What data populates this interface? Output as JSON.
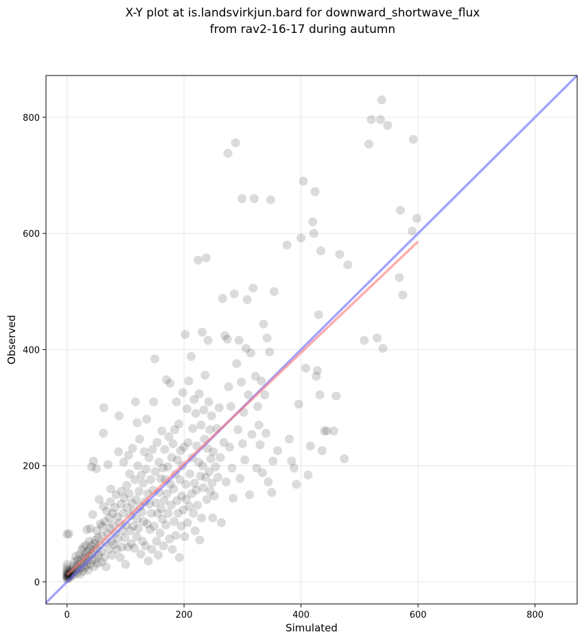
{
  "chart_data": {
    "type": "scatter",
    "title": [
      "X-Y plot at is.landsvirkjun.bard for downward_shortwave_flux",
      "from rav2-16-17 during autumn"
    ],
    "xlabel": "Simulated",
    "ylabel": "Observed",
    "xlim": [
      -36,
      872
    ],
    "ylim": [
      -38,
      872
    ],
    "xticks": [
      0,
      200,
      400,
      600,
      800
    ],
    "yticks": [
      0,
      200,
      400,
      600,
      800
    ],
    "grid": true,
    "point_color": "#000000",
    "point_opacity": 0.14,
    "identity_line": {
      "color": "#6666ff",
      "from": [
        -36,
        -36
      ],
      "to": [
        872,
        872
      ]
    },
    "fit_line": {
      "color": "#ff7777",
      "from": [
        0,
        12
      ],
      "to": [
        600,
        586
      ]
    },
    "points": [
      [
        0,
        5
      ],
      [
        0,
        8
      ],
      [
        0,
        10
      ],
      [
        0,
        12
      ],
      [
        0,
        14
      ],
      [
        0,
        17
      ],
      [
        0,
        20
      ],
      [
        0,
        24
      ],
      [
        0,
        30
      ],
      [
        0,
        82
      ],
      [
        1,
        6
      ],
      [
        2,
        9
      ],
      [
        2,
        15
      ],
      [
        3,
        11
      ],
      [
        3,
        83
      ],
      [
        4,
        7
      ],
      [
        5,
        12
      ],
      [
        5,
        20
      ],
      [
        6,
        16
      ],
      [
        7,
        10
      ],
      [
        8,
        22
      ],
      [
        9,
        14
      ],
      [
        10,
        18
      ],
      [
        11,
        28
      ],
      [
        12,
        12
      ],
      [
        13,
        35
      ],
      [
        14,
        20
      ],
      [
        15,
        44
      ],
      [
        16,
        25
      ],
      [
        17,
        16
      ],
      [
        18,
        30
      ],
      [
        19,
        38
      ],
      [
        20,
        22
      ],
      [
        21,
        47
      ],
      [
        22,
        13
      ],
      [
        23,
        32
      ],
      [
        24,
        26
      ],
      [
        25,
        55
      ],
      [
        26,
        40
      ],
      [
        27,
        18
      ],
      [
        28,
        60
      ],
      [
        29,
        34
      ],
      [
        30,
        42
      ],
      [
        30,
        24
      ],
      [
        31,
        48
      ],
      [
        32,
        63
      ],
      [
        33,
        28
      ],
      [
        34,
        90
      ],
      [
        35,
        52
      ],
      [
        35,
        36
      ],
      [
        36,
        20
      ],
      [
        37,
        44
      ],
      [
        38,
        70
      ],
      [
        39,
        56
      ],
      [
        40,
        30
      ],
      [
        40,
        92
      ],
      [
        41,
        62
      ],
      [
        42,
        48
      ],
      [
        42,
        198
      ],
      [
        43,
        38
      ],
      [
        44,
        116
      ],
      [
        45,
        208
      ],
      [
        45,
        54
      ],
      [
        46,
        26
      ],
      [
        47,
        66
      ],
      [
        48,
        72
      ],
      [
        49,
        40
      ],
      [
        50,
        58
      ],
      [
        50,
        195
      ],
      [
        51,
        88
      ],
      [
        52,
        32
      ],
      [
        53,
        76
      ],
      [
        54,
        46
      ],
      [
        55,
        142
      ],
      [
        56,
        64
      ],
      [
        57,
        100
      ],
      [
        58,
        52
      ],
      [
        59,
        34
      ],
      [
        60,
        96
      ],
      [
        60,
        80
      ],
      [
        62,
        256
      ],
      [
        62,
        130
      ],
      [
        63,
        300
      ],
      [
        64,
        42
      ],
      [
        65,
        104
      ],
      [
        66,
        68
      ],
      [
        67,
        26
      ],
      [
        68,
        122
      ],
      [
        69,
        84
      ],
      [
        70,
        202
      ],
      [
        71,
        56
      ],
      [
        72,
        110
      ],
      [
        73,
        92
      ],
      [
        74,
        138
      ],
      [
        75,
        160
      ],
      [
        76,
        70
      ],
      [
        77,
        46
      ],
      [
        78,
        118
      ],
      [
        79,
        98
      ],
      [
        80,
        64
      ],
      [
        82,
        128
      ],
      [
        83,
        84
      ],
      [
        84,
        150
      ],
      [
        85,
        56
      ],
      [
        86,
        112
      ],
      [
        87,
        74
      ],
      [
        88,
        224
      ],
      [
        89,
        286
      ],
      [
        90,
        102
      ],
      [
        91,
        42
      ],
      [
        92,
        134
      ],
      [
        93,
        156
      ],
      [
        94,
        60
      ],
      [
        95,
        88
      ],
      [
        96,
        118
      ],
      [
        97,
        206
      ],
      [
        98,
        144
      ],
      [
        99,
        76
      ],
      [
        100,
        30
      ],
      [
        101,
        98
      ],
      [
        102,
        166
      ],
      [
        103,
        128
      ],
      [
        104,
        60
      ],
      [
        105,
        218
      ],
      [
        106,
        152
      ],
      [
        107,
        186
      ],
      [
        108,
        88
      ],
      [
        109,
        114
      ],
      [
        110,
        66
      ],
      [
        111,
        136
      ],
      [
        112,
        230
      ],
      [
        113,
        96
      ],
      [
        114,
        122
      ],
      [
        115,
        58
      ],
      [
        116,
        176
      ],
      [
        117,
        310
      ],
      [
        118,
        142
      ],
      [
        119,
        78
      ],
      [
        120,
        274
      ],
      [
        120,
        108
      ],
      [
        121,
        200
      ],
      [
        122,
        92
      ],
      [
        123,
        156
      ],
      [
        124,
        246
      ],
      [
        125,
        130
      ],
      [
        126,
        48
      ],
      [
        127,
        184
      ],
      [
        128,
        120
      ],
      [
        129,
        70
      ],
      [
        130,
        170
      ],
      [
        131,
        104
      ],
      [
        132,
        224
      ],
      [
        133,
        138
      ],
      [
        134,
        62
      ],
      [
        135,
        194
      ],
      [
        136,
        280
      ],
      [
        137,
        100
      ],
      [
        138,
        152
      ],
      [
        139,
        36
      ],
      [
        140,
        214
      ],
      [
        141,
        134
      ],
      [
        142,
        90
      ],
      [
        143,
        176
      ],
      [
        144,
        118
      ],
      [
        145,
        56
      ],
      [
        146,
        228
      ],
      [
        147,
        158
      ],
      [
        148,
        310
      ],
      [
        149,
        96
      ],
      [
        150,
        384
      ],
      [
        151,
        190
      ],
      [
        152,
        136
      ],
      [
        153,
        70
      ],
      [
        154,
        240
      ],
      [
        155,
        118
      ],
      [
        156,
        46
      ],
      [
        157,
        206
      ],
      [
        158,
        154
      ],
      [
        159,
        84
      ],
      [
        160,
        178
      ],
      [
        161,
        126
      ],
      [
        162,
        260
      ],
      [
        163,
        108
      ],
      [
        164,
        196
      ],
      [
        165,
        62
      ],
      [
        166,
        140
      ],
      [
        167,
        228
      ],
      [
        168,
        176
      ],
      [
        169,
        98
      ],
      [
        170,
        348
      ],
      [
        171,
        152
      ],
      [
        172,
        198
      ],
      [
        173,
        118
      ],
      [
        174,
        250
      ],
      [
        175,
        74
      ],
      [
        176,
        342
      ],
      [
        177,
        168
      ],
      [
        178,
        132
      ],
      [
        179,
        214
      ],
      [
        180,
        56
      ],
      [
        181,
        238
      ],
      [
        182,
        160
      ],
      [
        183,
        104
      ],
      [
        184,
        262
      ],
      [
        185,
        186
      ],
      [
        186,
        80
      ],
      [
        187,
        310
      ],
      [
        188,
        140
      ],
      [
        189,
        210
      ],
      [
        190,
        118
      ],
      [
        191,
        272
      ],
      [
        192,
        42
      ],
      [
        193,
        176
      ],
      [
        194,
        226
      ],
      [
        195,
        96
      ],
      [
        196,
        148
      ],
      [
        197,
        200
      ],
      [
        198,
        326
      ],
      [
        199,
        124
      ],
      [
        200,
        232
      ],
      [
        201,
        78
      ],
      [
        202,
        426
      ],
      [
        203,
        168
      ],
      [
        204,
        142
      ],
      [
        205,
        298
      ],
      [
        206,
        102
      ],
      [
        207,
        240
      ],
      [
        208,
        346
      ],
      [
        209,
        130
      ],
      [
        210,
        186
      ],
      [
        212,
        388
      ],
      [
        213,
        152
      ],
      [
        214,
        214
      ],
      [
        215,
        264
      ],
      [
        216,
        118
      ],
      [
        217,
        314
      ],
      [
        218,
        170
      ],
      [
        219,
        88
      ],
      [
        220,
        290
      ],
      [
        221,
        158
      ],
      [
        222,
        234
      ],
      [
        223,
        132
      ],
      [
        224,
        554
      ],
      [
        225,
        206
      ],
      [
        226,
        324
      ],
      [
        227,
        72
      ],
      [
        228,
        182
      ],
      [
        229,
        270
      ],
      [
        230,
        110
      ],
      [
        231,
        430
      ],
      [
        232,
        200
      ],
      [
        233,
        162
      ],
      [
        234,
        296
      ],
      [
        235,
        246
      ],
      [
        236,
        356
      ],
      [
        237,
        180
      ],
      [
        238,
        558
      ],
      [
        239,
        142
      ],
      [
        240,
        230
      ],
      [
        241,
        416
      ],
      [
        242,
        310
      ],
      [
        243,
        190
      ],
      [
        244,
        262
      ],
      [
        245,
        156
      ],
      [
        246,
        212
      ],
      [
        247,
        286
      ],
      [
        248,
        170
      ],
      [
        249,
        110
      ],
      [
        250,
        224
      ],
      [
        252,
        148
      ],
      [
        254,
        198
      ],
      [
        256,
        264
      ],
      [
        258,
        180
      ],
      [
        260,
        300
      ],
      [
        262,
        214
      ],
      [
        264,
        102
      ],
      [
        266,
        488
      ],
      [
        268,
        240
      ],
      [
        270,
        424
      ],
      [
        272,
        172
      ],
      [
        274,
        418
      ],
      [
        275,
        738
      ],
      [
        276,
        336
      ],
      [
        278,
        232
      ],
      [
        280,
        302
      ],
      [
        282,
        196
      ],
      [
        284,
        144
      ],
      [
        286,
        496
      ],
      [
        288,
        756
      ],
      [
        290,
        376
      ],
      [
        292,
        262
      ],
      [
        294,
        416
      ],
      [
        296,
        178
      ],
      [
        298,
        344
      ],
      [
        299,
        660
      ],
      [
        300,
        238
      ],
      [
        302,
        292
      ],
      [
        304,
        210
      ],
      [
        306,
        402
      ],
      [
        308,
        486
      ],
      [
        310,
        322
      ],
      [
        312,
        150
      ],
      [
        314,
        394
      ],
      [
        316,
        254
      ],
      [
        318,
        506
      ],
      [
        320,
        660
      ],
      [
        322,
        354
      ],
      [
        324,
        196
      ],
      [
        326,
        302
      ],
      [
        328,
        270
      ],
      [
        330,
        236
      ],
      [
        332,
        346
      ],
      [
        334,
        188
      ],
      [
        336,
        444
      ],
      [
        338,
        322
      ],
      [
        340,
        256
      ],
      [
        342,
        420
      ],
      [
        344,
        172
      ],
      [
        346,
        396
      ],
      [
        348,
        658
      ],
      [
        350,
        154
      ],
      [
        352,
        208
      ],
      [
        354,
        500
      ],
      [
        360,
        226
      ],
      [
        376,
        580
      ],
      [
        380,
        246
      ],
      [
        384,
        208
      ],
      [
        388,
        196
      ],
      [
        392,
        168
      ],
      [
        396,
        306
      ],
      [
        400,
        592
      ],
      [
        404,
        690
      ],
      [
        408,
        368
      ],
      [
        412,
        184
      ],
      [
        416,
        234
      ],
      [
        420,
        620
      ],
      [
        422,
        600
      ],
      [
        424,
        672
      ],
      [
        426,
        354
      ],
      [
        428,
        364
      ],
      [
        430,
        460
      ],
      [
        432,
        322
      ],
      [
        434,
        570
      ],
      [
        436,
        226
      ],
      [
        440,
        260
      ],
      [
        444,
        260
      ],
      [
        456,
        260
      ],
      [
        460,
        320
      ],
      [
        466,
        564
      ],
      [
        474,
        212
      ],
      [
        480,
        546
      ],
      [
        508,
        416
      ],
      [
        516,
        754
      ],
      [
        520,
        796
      ],
      [
        530,
        420
      ],
      [
        536,
        796
      ],
      [
        538,
        830
      ],
      [
        540,
        402
      ],
      [
        548,
        786
      ],
      [
        568,
        524
      ],
      [
        570,
        640
      ],
      [
        574,
        494
      ],
      [
        590,
        604
      ],
      [
        592,
        762
      ],
      [
        598,
        626
      ]
    ]
  }
}
